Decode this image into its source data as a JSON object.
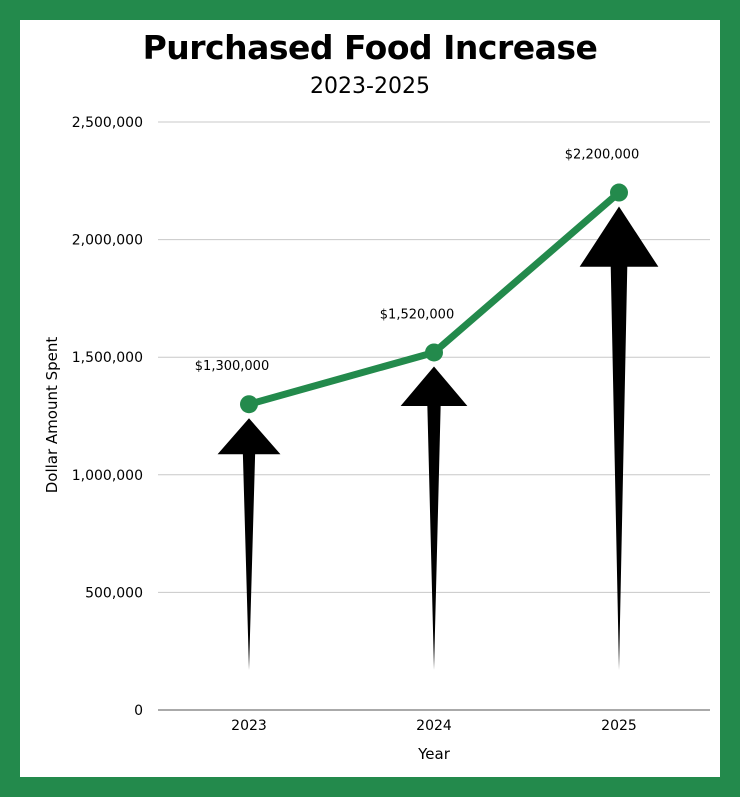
{
  "chart_data": {
    "type": "line",
    "title": "Purchased Food Increase",
    "subtitle": "2023-2025",
    "xlabel": "Year",
    "ylabel": "Dollar Amount Spent",
    "categories": [
      "2023",
      "2024",
      "2025"
    ],
    "values": [
      1300000,
      1520000,
      2200000
    ],
    "data_labels": [
      "$1,300,000",
      "$1,520,000",
      "$2,200,000"
    ],
    "ylim": [
      0,
      2500000
    ],
    "yticks": [
      0,
      500000,
      1000000,
      1500000,
      2000000,
      2500000
    ],
    "ytick_labels": [
      "0",
      "500,000",
      "1,000,000",
      "1,500,000",
      "2,000,000",
      "2,500,000"
    ],
    "grid": true,
    "colors": {
      "frame": "#238a4c",
      "line": "#238a4c",
      "marker": "#238a4c",
      "arrow": "#000000",
      "grid": "#c8c8c8",
      "axis": "#555555"
    }
  }
}
